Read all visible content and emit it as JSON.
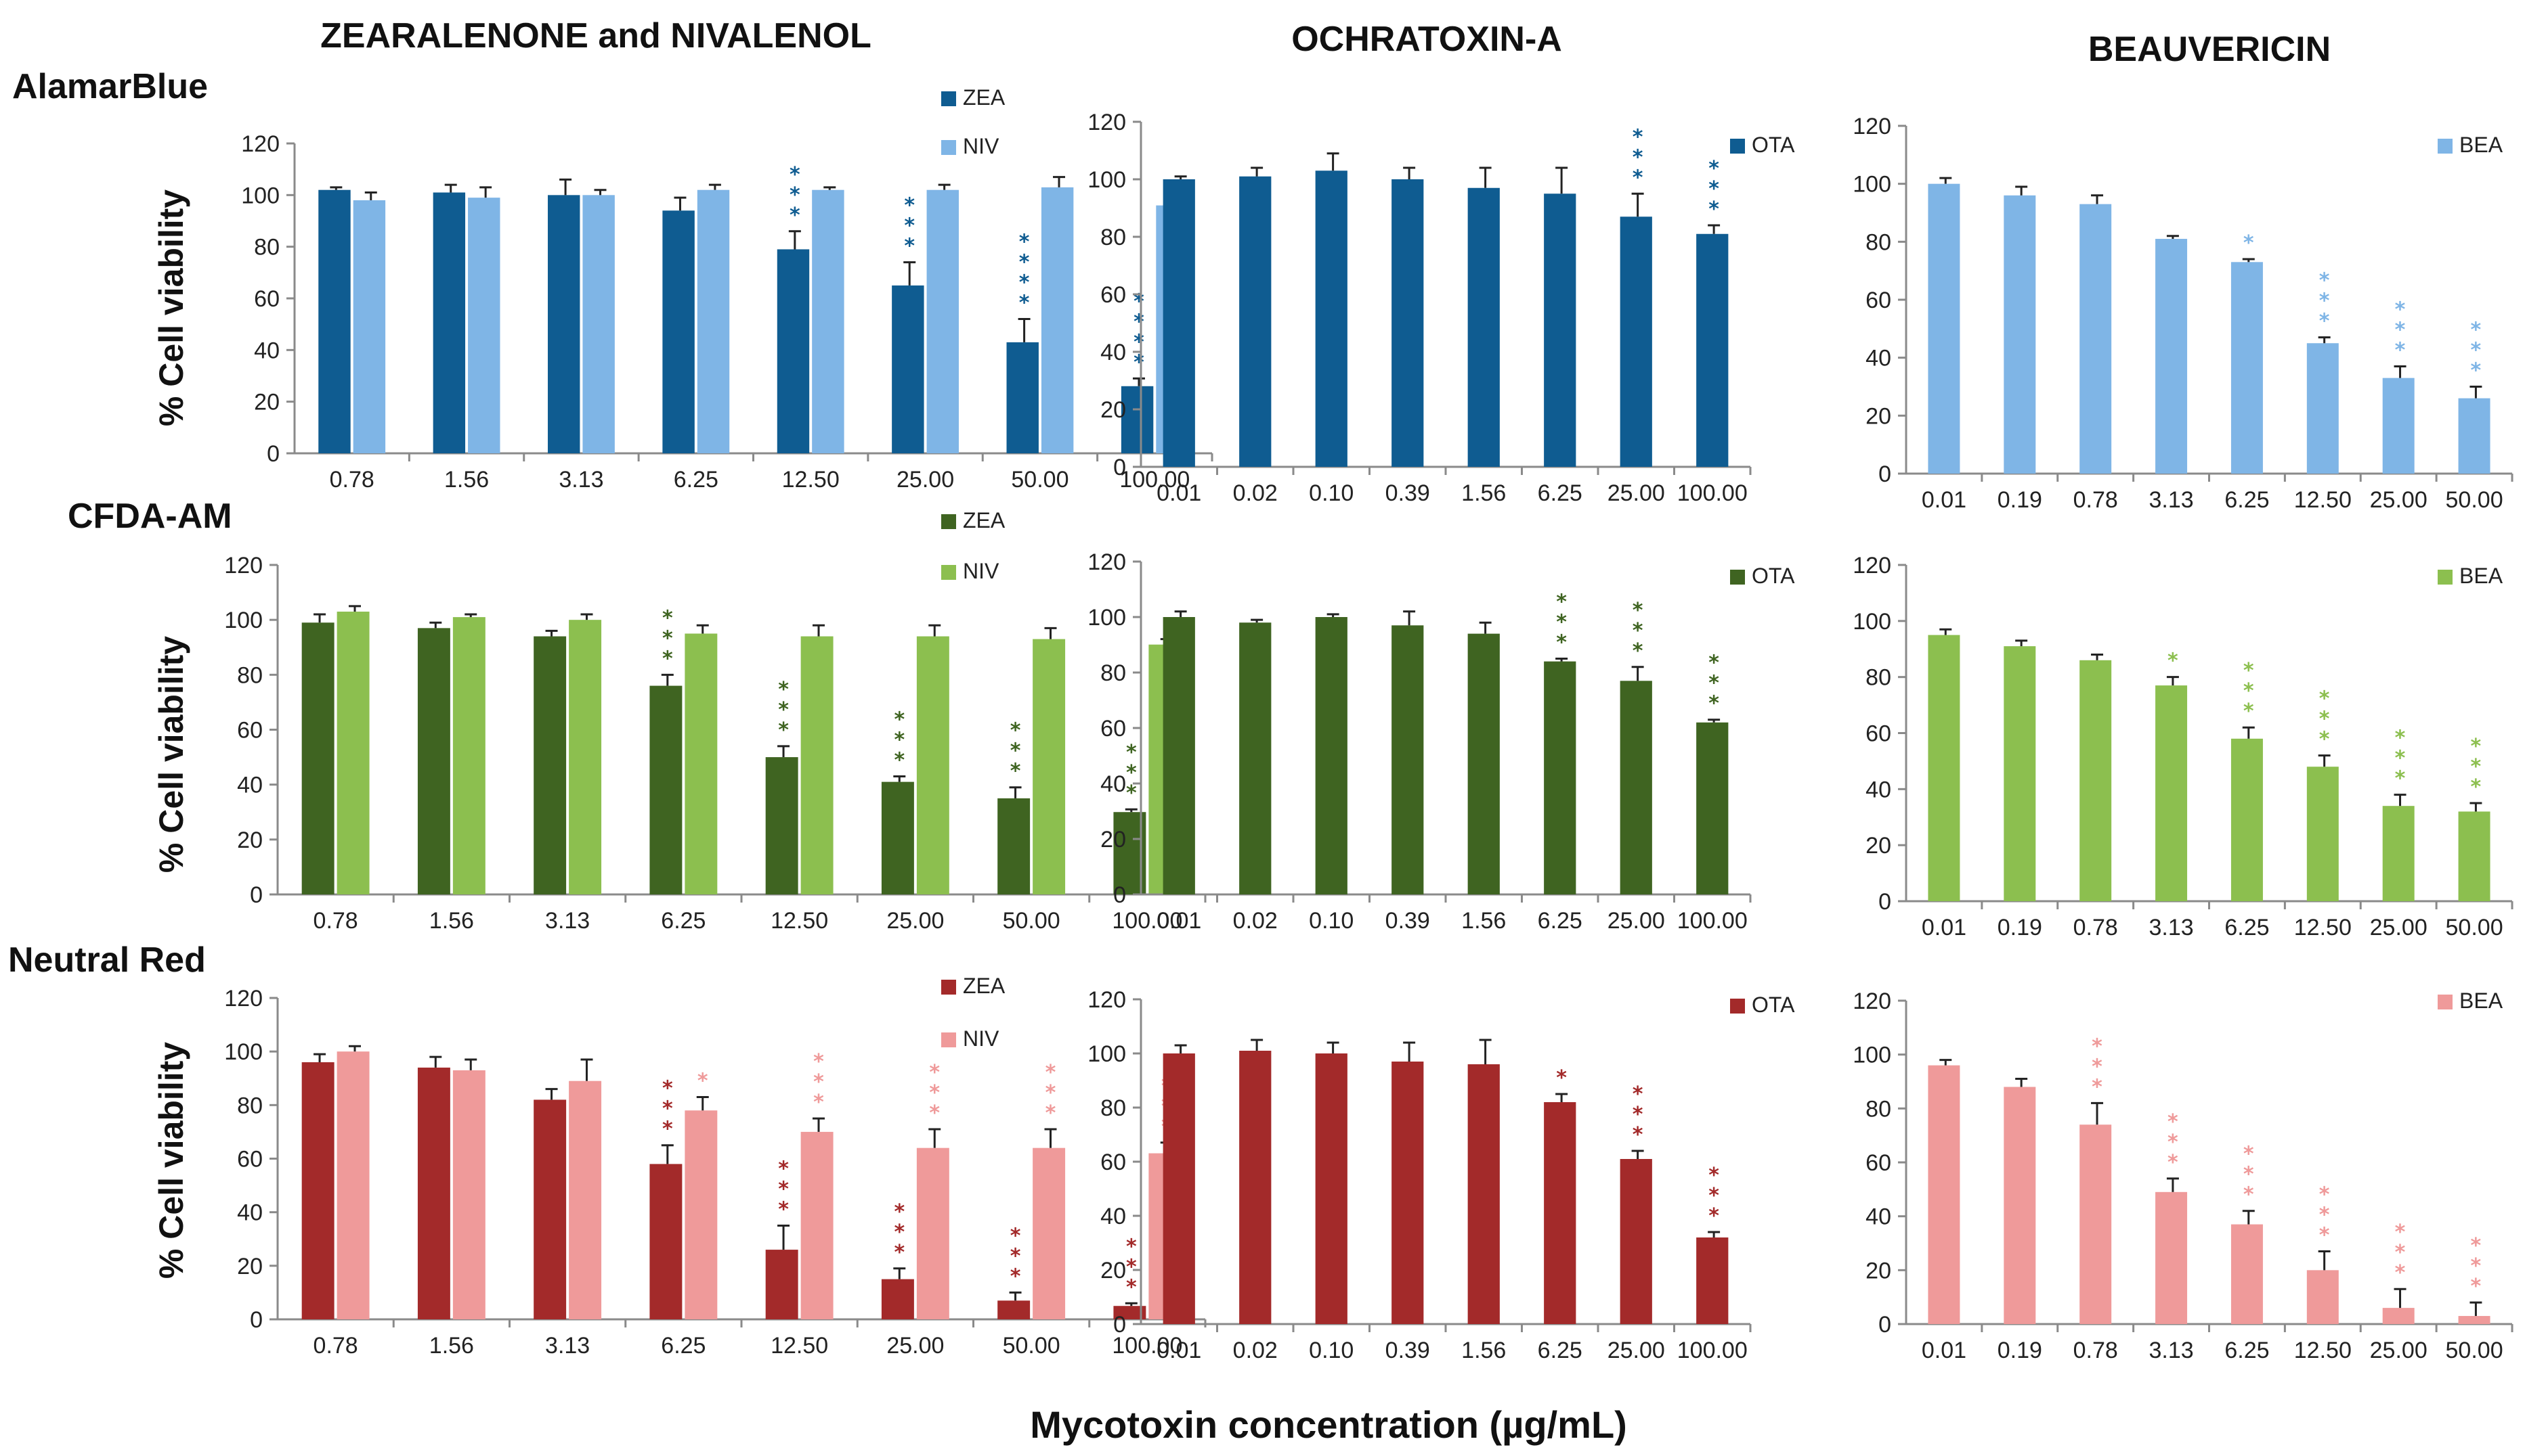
{
  "column_titles": [
    "ZEARALENONE and NIVALENOL",
    "OCHRATOXIN-A",
    "BEAUVERICIN"
  ],
  "row_titles": [
    "AlamarBlue",
    "CFDA-AM",
    "Neutral Red"
  ],
  "y_axis_label": "% Cell viability",
  "x_axis_label": "Mycotoxin concentration (µg/mL)",
  "colors": {
    "blue_dark": "#0f5c91",
    "blue_light": "#7fb5e6",
    "green_dark": "#3f6421",
    "green_light": "#8cbf4f",
    "red_dark": "#a32a2a",
    "red_light": "#ef9a9a"
  },
  "chart_data": [
    {
      "id": "alamarblue-zea-niv",
      "type": "bar",
      "categories": [
        "0.78",
        "1.56",
        "3.13",
        "6.25",
        "12.50",
        "25.00",
        "50.00",
        "100.00"
      ],
      "yticks": [
        "0",
        "20",
        "40",
        "60",
        "80",
        "100",
        "120"
      ],
      "ylim": [
        0,
        120
      ],
      "series": [
        {
          "name": "ZEA",
          "color": "#0f5c91",
          "values": [
            102,
            101,
            100,
            94,
            79,
            65,
            43,
            26
          ],
          "errors": [
            1,
            3,
            6,
            5,
            7,
            9,
            9,
            3
          ],
          "stars": [
            "",
            "",
            "",
            "",
            "***",
            "***",
            "****",
            "****"
          ]
        },
        {
          "name": "NIV",
          "color": "#7fb5e6",
          "values": [
            98,
            99,
            100,
            102,
            102,
            102,
            103,
            96
          ],
          "errors": [
            3,
            4,
            2,
            2,
            1,
            2,
            4,
            4
          ],
          "stars": [
            "",
            "",
            "",
            "",
            "",
            "",
            "",
            ""
          ]
        }
      ]
    },
    {
      "id": "alamarblue-ota",
      "type": "bar",
      "categories": [
        "0.01",
        "0.02",
        "0.10",
        "0.39",
        "1.56",
        "6.25",
        "25.00",
        "100.00"
      ],
      "yticks": [
        "0",
        "20",
        "40",
        "60",
        "80",
        "100",
        "120"
      ],
      "ylim": [
        0,
        120
      ],
      "series": [
        {
          "name": "OTA",
          "color": "#0f5c91",
          "values": [
            100,
            101,
            103,
            100,
            97,
            95,
            87,
            81
          ],
          "errors": [
            1,
            3,
            6,
            4,
            7,
            9,
            8,
            3
          ],
          "stars": [
            "",
            "",
            "",
            "",
            "",
            "",
            "***",
            "***"
          ]
        }
      ]
    },
    {
      "id": "alamarblue-bea",
      "type": "bar",
      "categories": [
        "0.01",
        "0.19",
        "0.78",
        "3.13",
        "6.25",
        "12.50",
        "25.00",
        "50.00"
      ],
      "yticks": [
        "0",
        "20",
        "40",
        "60",
        "80",
        "100",
        "120"
      ],
      "ylim": [
        0,
        120
      ],
      "series": [
        {
          "name": "BEA",
          "color": "#7fb5e6",
          "values": [
            100,
            96,
            93,
            81,
            73,
            45,
            33,
            26
          ],
          "errors": [
            2,
            3,
            3,
            1,
            1,
            2,
            4,
            4
          ],
          "stars": [
            "",
            "",
            "",
            "",
            "*",
            "***",
            "***",
            "***"
          ]
        }
      ]
    },
    {
      "id": "cfda-zea-niv",
      "type": "bar",
      "categories": [
        "0.78",
        "1.56",
        "3.13",
        "6.25",
        "12.50",
        "25.00",
        "50.00",
        "100.00"
      ],
      "yticks": [
        "0",
        "20",
        "40",
        "60",
        "80",
        "100",
        "120"
      ],
      "ylim": [
        0,
        120
      ],
      "series": [
        {
          "name": "ZEA",
          "color": "#3f6421",
          "values": [
            99,
            97,
            94,
            76,
            50,
            41,
            35,
            30
          ],
          "errors": [
            3,
            2,
            2,
            4,
            4,
            2,
            4,
            1
          ],
          "stars": [
            "",
            "",
            "",
            "***",
            "***",
            "***",
            "***",
            "***"
          ]
        },
        {
          "name": "NIV",
          "color": "#8cbf4f",
          "values": [
            103,
            101,
            100,
            95,
            94,
            94,
            93,
            91
          ],
          "errors": [
            2,
            1,
            2,
            3,
            4,
            4,
            4,
            2
          ],
          "stars": [
            "",
            "",
            "",
            "",
            "",
            "",
            "",
            ""
          ]
        }
      ]
    },
    {
      "id": "cfda-ota",
      "type": "bar",
      "categories": [
        "0.01",
        "0.02",
        "0.10",
        "0.39",
        "1.56",
        "6.25",
        "25.00",
        "100.00"
      ],
      "yticks": [
        "0",
        "20",
        "40",
        "60",
        "80",
        "100",
        "120"
      ],
      "ylim": [
        0,
        120
      ],
      "series": [
        {
          "name": "OTA",
          "color": "#3f6421",
          "values": [
            100,
            98,
            100,
            97,
            94,
            84,
            77,
            62
          ],
          "errors": [
            2,
            1,
            1,
            5,
            4,
            1,
            5,
            1
          ],
          "stars": [
            "",
            "",
            "",
            "",
            "",
            "***",
            "***",
            "***"
          ]
        }
      ]
    },
    {
      "id": "cfda-bea",
      "type": "bar",
      "categories": [
        "0.01",
        "0.19",
        "0.78",
        "3.13",
        "6.25",
        "12.50",
        "25.00",
        "50.00"
      ],
      "yticks": [
        "0",
        "20",
        "40",
        "60",
        "80",
        "100",
        "120"
      ],
      "ylim": [
        0,
        120
      ],
      "series": [
        {
          "name": "BEA",
          "color": "#8cbf4f",
          "values": [
            95,
            91,
            86,
            77,
            58,
            48,
            34,
            32
          ],
          "errors": [
            2,
            2,
            2,
            3,
            4,
            4,
            4,
            3
          ],
          "stars": [
            "",
            "",
            "",
            "*",
            "***",
            "***",
            "***",
            "***"
          ]
        }
      ]
    },
    {
      "id": "neutralred-zea-niv",
      "type": "bar",
      "categories": [
        "0.78",
        "1.56",
        "3.13",
        "6.25",
        "12.50",
        "25.00",
        "50.00",
        "100.00"
      ],
      "yticks": [
        "0",
        "20",
        "40",
        "60",
        "80",
        "100",
        "120"
      ],
      "ylim": [
        0,
        120
      ],
      "series": [
        {
          "name": "ZEA",
          "color": "#a32a2a",
          "values": [
            96,
            94,
            82,
            58,
            26,
            15,
            7,
            5
          ],
          "errors": [
            3,
            4,
            4,
            7,
            9,
            4,
            3,
            1
          ],
          "stars": [
            "",
            "",
            "",
            "***",
            "***",
            "***",
            "***",
            "***"
          ]
        },
        {
          "name": "NIV",
          "color": "#ef9a9a",
          "values": [
            100,
            93,
            89,
            78,
            70,
            64,
            64,
            62
          ],
          "errors": [
            2,
            4,
            8,
            5,
            5,
            7,
            7,
            4
          ],
          "stars": [
            "",
            "",
            "",
            "*",
            "***",
            "***",
            "***",
            "***"
          ]
        }
      ]
    },
    {
      "id": "neutralred-ota",
      "type": "bar",
      "categories": [
        "0.01",
        "0.02",
        "0.10",
        "0.39",
        "1.56",
        "6.25",
        "25.00",
        "100.00"
      ],
      "yticks": [
        "0",
        "20",
        "40",
        "60",
        "80",
        "100",
        "120"
      ],
      "ylim": [
        0,
        120
      ],
      "series": [
        {
          "name": "OTA",
          "color": "#a32a2a",
          "values": [
            100,
            101,
            100,
            97,
            96,
            82,
            61,
            32
          ],
          "errors": [
            3,
            4,
            4,
            7,
            9,
            3,
            3,
            2
          ],
          "stars": [
            "",
            "",
            "",
            "",
            "",
            "*",
            "***",
            "***"
          ]
        }
      ]
    },
    {
      "id": "neutralred-bea",
      "type": "bar",
      "categories": [
        "0.01",
        "0.19",
        "0.78",
        "3.13",
        "6.25",
        "12.50",
        "25.00",
        "50.00"
      ],
      "yticks": [
        "0",
        "20",
        "40",
        "60",
        "80",
        "100",
        "120"
      ],
      "ylim": [
        0,
        120
      ],
      "series": [
        {
          "name": "BEA",
          "color": "#ef9a9a",
          "values": [
            96,
            88,
            74,
            49,
            37,
            20,
            6,
            3
          ],
          "errors": [
            2,
            3,
            8,
            5,
            5,
            7,
            7,
            5
          ],
          "stars": [
            "",
            "",
            "***",
            "***",
            "***",
            "***",
            "***",
            "***"
          ]
        }
      ]
    }
  ]
}
